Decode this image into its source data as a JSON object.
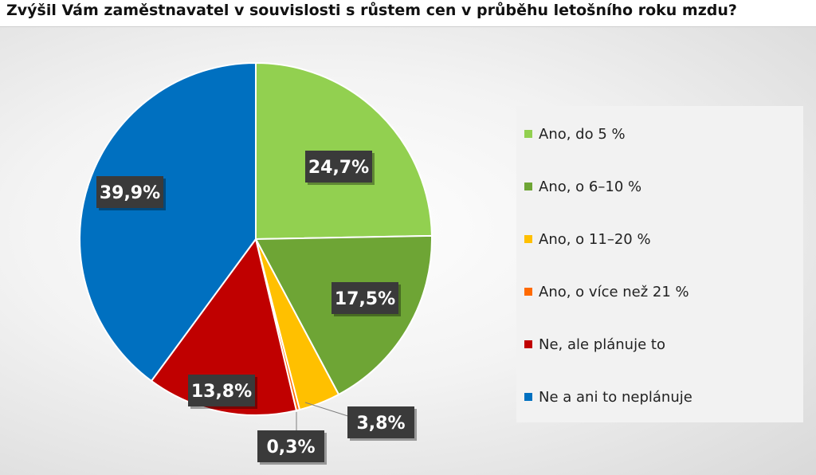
{
  "title": "Zvýšil Vám zaměstnavatel v souvislosti s růstem cen v průběhu letošního roku mzdu?",
  "chart_data": {
    "type": "pie",
    "categories": [
      "Ano, do 5 %",
      "Ano, o 6–10 %",
      "Ano, o 11–20 %",
      "Ano, o více než 21 %",
      "Ne, ale plánuje to",
      "Ne a ani to neplánuje"
    ],
    "values": [
      24.7,
      17.5,
      3.8,
      0.3,
      13.8,
      39.9
    ],
    "data_labels": [
      "24,7%",
      "17,5%",
      "3,8%",
      "0,3%",
      "13,8%",
      "39,9%"
    ],
    "colors": [
      "#92d050",
      "#6ea535",
      "#ffc000",
      "#ff6a00",
      "#c00000",
      "#0070c0"
    ],
    "legend_placement": "right",
    "start_angle": "12 o'clock, clockwise"
  }
}
